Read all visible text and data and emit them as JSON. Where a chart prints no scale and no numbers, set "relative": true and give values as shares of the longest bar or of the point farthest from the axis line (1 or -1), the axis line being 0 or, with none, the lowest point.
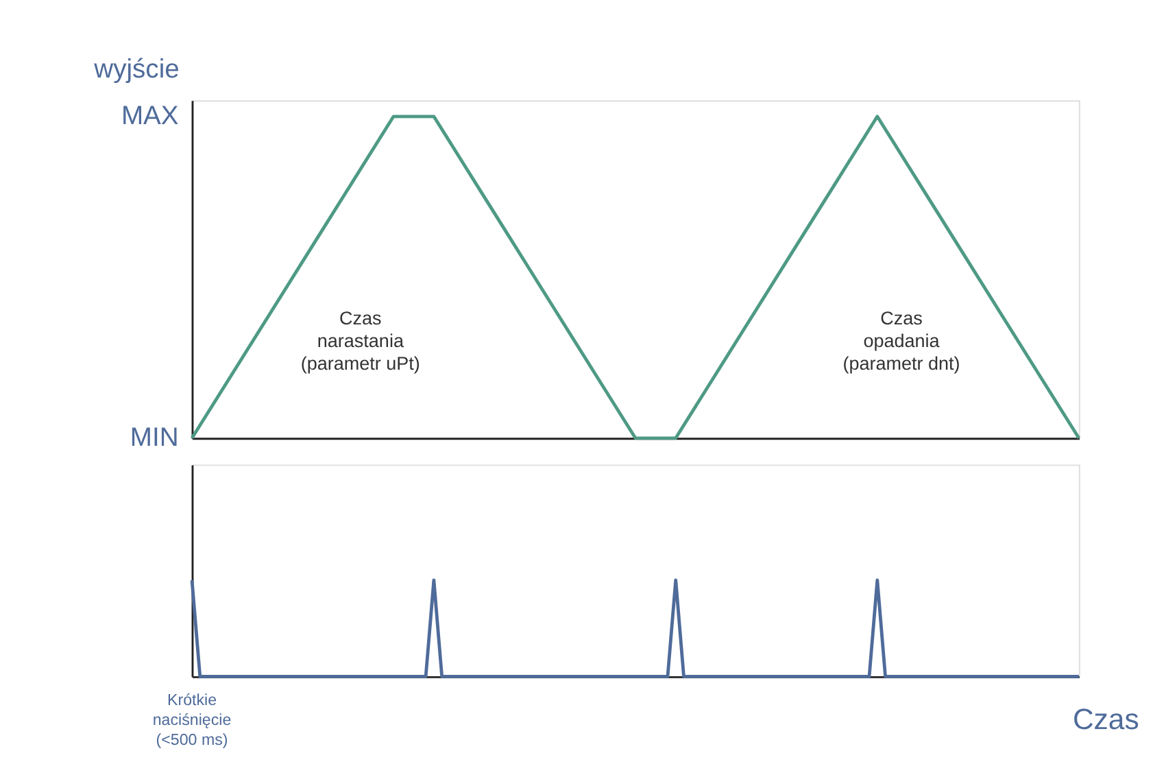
{
  "chart_data": [
    {
      "type": "line",
      "ylabel": "wyjście",
      "categories": [
        null,
        null,
        null,
        null,
        null,
        null,
        null,
        null,
        null,
        null,
        null,
        null,
        null,
        null,
        null,
        null,
        null,
        null,
        null,
        null,
        null,
        null,
        null
      ],
      "relative": true,
      "tick_labels": false,
      "marker": "none",
      "line_style": "solid",
      "series": [
        {
          "color": "#4e9a85",
          "values": [
            0,
            0.2,
            0.4,
            0.6,
            0.8,
            1,
            1,
            0.8,
            0.6,
            0.4,
            0.2,
            0,
            0,
            0.2,
            0.4,
            0.6,
            0.8,
            1,
            0.8,
            0.6,
            0.4,
            0.2,
            0
          ]
        }
      ],
      "annotations": [
        "MAX",
        "MIN",
        "Czas\nnarastania\n(parametr uPt)",
        "Czas\nopadania\n(parametr dnt)"
      ]
    },
    {
      "type": "line",
      "relative": true,
      "xlabel": "Czas",
      "categories": [
        null,
        null,
        null,
        null,
        null,
        null,
        null,
        null,
        null,
        null,
        null,
        null,
        null,
        null,
        null,
        null,
        null,
        null,
        null,
        null,
        null,
        null,
        null,
        null,
        null,
        null,
        null,
        null,
        null,
        null,
        null,
        null,
        null,
        null,
        null,
        null,
        null,
        null,
        null,
        null,
        null,
        null,
        null,
        null,
        null,
        null,
        null,
        null,
        null,
        null,
        null,
        null,
        null,
        null,
        null,
        null,
        null,
        null,
        null,
        null,
        null,
        null,
        null,
        null,
        null,
        null,
        null,
        null,
        null,
        null,
        null,
        null,
        null,
        null,
        null,
        null,
        null,
        null,
        null,
        null,
        null,
        null,
        null,
        null,
        null,
        null,
        null,
        null,
        null,
        null,
        null,
        null,
        null,
        null,
        null,
        null,
        null,
        null,
        null,
        null,
        null,
        null,
        null,
        null,
        null,
        null,
        null,
        null,
        null,
        null,
        null
      ],
      "tick_labels": false,
      "marker": "none",
      "line_style": "solid",
      "series": [
        {
          "color": "#4f6b9a",
          "values": [
            1,
            0,
            0,
            0,
            0,
            0,
            0,
            0,
            0,
            0,
            0,
            0,
            0,
            0,
            0,
            0,
            0,
            0,
            0,
            0,
            0,
            0,
            0,
            0,
            0,
            0,
            0,
            0,
            0,
            0,
            1,
            0,
            0,
            0,
            0,
            0,
            0,
            0,
            0,
            0,
            0,
            0,
            0,
            0,
            0,
            0,
            0,
            0,
            0,
            0,
            0,
            0,
            0,
            0,
            0,
            0,
            0,
            0,
            0,
            0,
            1,
            0,
            0,
            0,
            0,
            0,
            0,
            0,
            0,
            0,
            0,
            0,
            0,
            0,
            0,
            0,
            0,
            0,
            0,
            0,
            0,
            0,
            0,
            0,
            0,
            1,
            0,
            0,
            0,
            0,
            0,
            0,
            0,
            0,
            0,
            0,
            0,
            0,
            0,
            0,
            0,
            0,
            0,
            0,
            0,
            0,
            0,
            0,
            0,
            0,
            0
          ]
        }
      ],
      "annotations": [
        "Krótkie\nnaciśnięcie\n(<500 ms)"
      ]
    }
  ]
}
